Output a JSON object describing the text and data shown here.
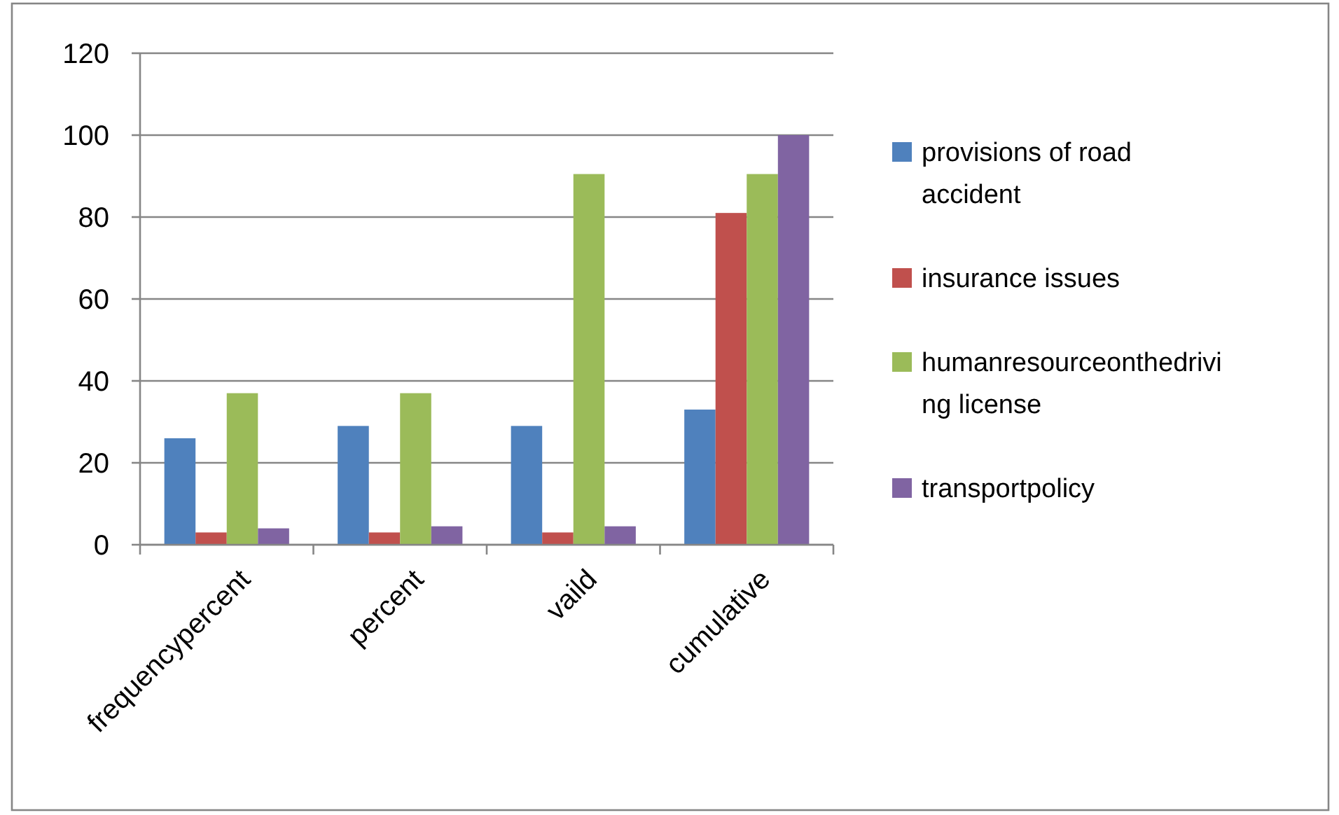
{
  "chart_data": {
    "type": "bar",
    "categories": [
      "frequencypercent",
      "percent",
      "vaild",
      "cumulative"
    ],
    "series": [
      {
        "name": "provisions of road accident",
        "color": "#4f81bd",
        "values": [
          26,
          29,
          29,
          33
        ]
      },
      {
        "name": "insurance issues",
        "color": "#c0504d",
        "values": [
          3,
          3,
          3,
          81
        ]
      },
      {
        "name": "humanresourceonthedriving license",
        "color": "#9bbb59",
        "values": [
          37,
          37,
          90.5,
          90.5
        ]
      },
      {
        "name": "transportpolicy",
        "color": "#8064a2",
        "values": [
          4,
          4.5,
          4.5,
          100
        ]
      }
    ],
    "ylim": [
      0,
      120
    ],
    "yticks": [
      0,
      20,
      40,
      60,
      80,
      100,
      120
    ],
    "grid": "y",
    "legend": "right"
  }
}
